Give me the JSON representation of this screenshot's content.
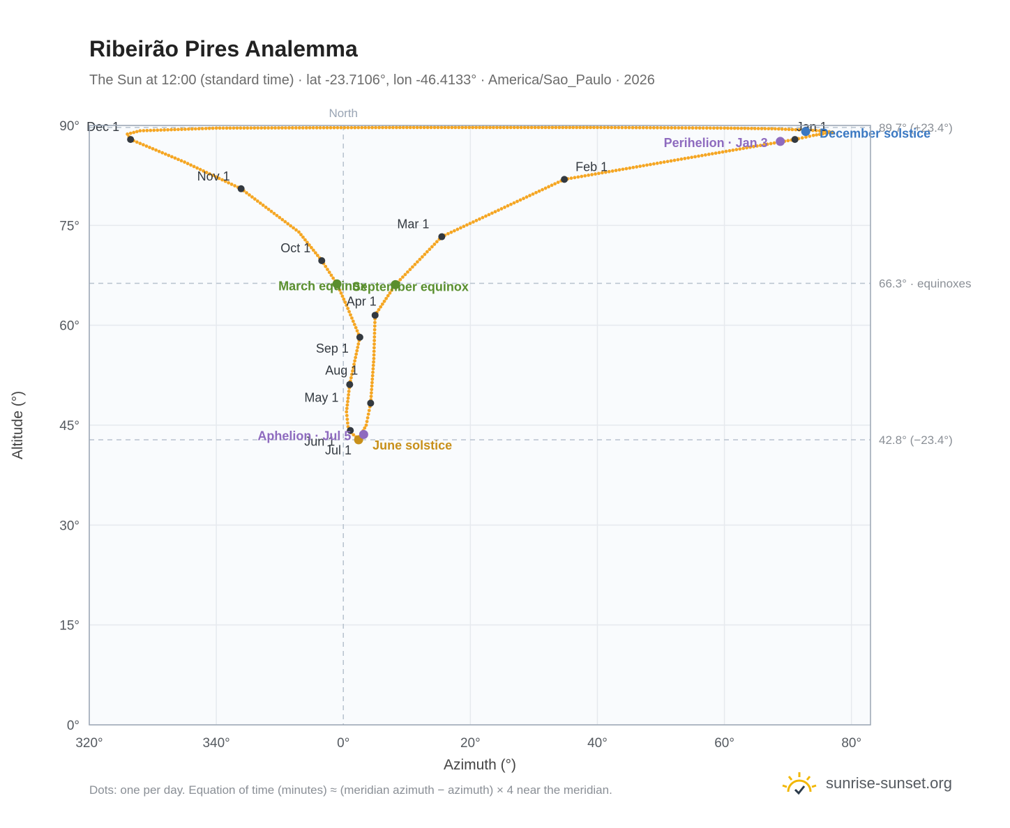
{
  "title": "Ribeirão Pires Analemma",
  "subtitle": "The Sun at 12:00 (standard time) · lat -23.7106°, lon -46.4133° · America/Sao_Paulo · 2026",
  "footnote": "Dots: one per day. Equation of time (minutes) ≈ (meridian azimuth − azimuth) × 4 near the meridian.",
  "brand": {
    "name": "sunrise-sunset.org",
    "icon": "sun-logo-icon"
  },
  "colors": {
    "curve": "#f5a623",
    "month_marker": "#333940",
    "equinox": "#5a8f2e",
    "june_solstice": "#c8901a",
    "december_solstice": "#3a78c2",
    "apsis": "#8e6bbf",
    "grid": "#e6e9ee",
    "plot_bg": "#f9fbfd",
    "axis": "#9aa5b4",
    "text": "#555a60"
  },
  "chart_data": {
    "type": "scatter",
    "xlabel": "Azimuth (°)",
    "ylabel": "Altitude (°)",
    "xlim": [
      320,
      83
    ],
    "ylim": [
      0,
      90
    ],
    "x_ticks": [
      {
        "value": 320,
        "label": "320°"
      },
      {
        "value": 340,
        "label": "340°"
      },
      {
        "value": 0,
        "label": "0°"
      },
      {
        "value": 20,
        "label": "20°"
      },
      {
        "value": 40,
        "label": "40°"
      },
      {
        "value": 60,
        "label": "60°"
      },
      {
        "value": 80,
        "label": "80°"
      }
    ],
    "y_ticks": [
      {
        "value": 0,
        "label": "0°"
      },
      {
        "value": 15,
        "label": "15°"
      },
      {
        "value": 30,
        "label": "30°"
      },
      {
        "value": 45,
        "label": "45°"
      },
      {
        "value": 60,
        "label": "60°"
      },
      {
        "value": 75,
        "label": "75°"
      },
      {
        "value": 90,
        "label": "90°"
      }
    ],
    "grid": true,
    "north_line": {
      "azimuth": 0,
      "label": "North"
    },
    "reference_lines": [
      {
        "altitude": 89.7,
        "label": "89.7° (+23.4°)"
      },
      {
        "altitude": 66.3,
        "label": "66.3° · equinoxes"
      },
      {
        "altitude": 42.8,
        "label": "42.8° (−23.4°)"
      }
    ],
    "month_markers": [
      {
        "label": "Jan 1",
        "azimuth": 71.1,
        "altitude": 87.9
      },
      {
        "label": "Feb 1",
        "azimuth": 34.8,
        "altitude": 81.9
      },
      {
        "label": "Mar 1",
        "azimuth": 15.5,
        "altitude": 73.3
      },
      {
        "label": "Apr 1",
        "azimuth": 5.0,
        "altitude": 61.5
      },
      {
        "label": "May 1",
        "azimuth": 4.3,
        "altitude": 48.3
      },
      {
        "label": "Jun 1",
        "azimuth": 1.1,
        "altitude": 44.2
      },
      {
        "label": "Jul 1",
        "azimuth": 2.4,
        "altitude": 42.9
      },
      {
        "label": "Aug 1",
        "azimuth": 1.0,
        "altitude": 51.1
      },
      {
        "label": "Sep 1",
        "azimuth": 2.6,
        "altitude": 58.2
      },
      {
        "label": "Oct 1",
        "azimuth": -3.4,
        "altitude": 69.7
      },
      {
        "label": "Nov 1",
        "azimuth": -16.1,
        "altitude": 80.5
      },
      {
        "label": "Dec 1",
        "azimuth": -33.5,
        "altitude": 87.9
      }
    ],
    "events": [
      {
        "label": "March equinox",
        "azimuth": -1.0,
        "altitude": 66.2,
        "kind": "equinox"
      },
      {
        "label": "September equinox",
        "azimuth": 8.2,
        "altitude": 66.1,
        "kind": "equinox"
      },
      {
        "label": "June solstice",
        "azimuth": 2.4,
        "altitude": 42.8,
        "kind": "june_solstice"
      },
      {
        "label": "December solstice",
        "azimuth": 72.8,
        "altitude": 89.1,
        "kind": "december_solstice"
      },
      {
        "label": "Aphelion · Jul 5",
        "azimuth": 3.2,
        "altitude": 43.6,
        "kind": "apsis"
      },
      {
        "label": "Perihelion · Jan 3",
        "azimuth": 68.8,
        "altitude": 87.6,
        "kind": "apsis"
      }
    ],
    "daily_path": [
      {
        "azimuth": 71.1,
        "altitude": 87.9
      },
      {
        "azimuth": 34.8,
        "altitude": 81.9
      },
      {
        "azimuth": 15.5,
        "altitude": 73.3
      },
      {
        "azimuth": 8.2,
        "altitude": 66.1
      },
      {
        "azimuth": 5.0,
        "altitude": 61.5
      },
      {
        "azimuth": 4.8,
        "altitude": 55.0
      },
      {
        "azimuth": 4.3,
        "altitude": 48.3
      },
      {
        "azimuth": 3.6,
        "altitude": 45.0
      },
      {
        "azimuth": 2.4,
        "altitude": 42.9
      },
      {
        "azimuth": 0.8,
        "altitude": 44.2
      },
      {
        "azimuth": 0.5,
        "altitude": 47.0
      },
      {
        "azimuth": 1.0,
        "altitude": 51.1
      },
      {
        "azimuth": 2.6,
        "altitude": 58.2
      },
      {
        "azimuth": 0.5,
        "altitude": 63.0
      },
      {
        "azimuth": -1.0,
        "altitude": 66.2
      },
      {
        "azimuth": -3.4,
        "altitude": 69.7
      },
      {
        "azimuth": -7.0,
        "altitude": 74.0
      },
      {
        "azimuth": -16.1,
        "altitude": 80.5
      },
      {
        "azimuth": -25.0,
        "altitude": 84.5
      },
      {
        "azimuth": -33.5,
        "altitude": 87.9
      },
      {
        "azimuth": -34.0,
        "altitude": 88.7
      },
      {
        "azimuth": -32.0,
        "altitude": 89.2
      },
      {
        "azimuth": -20.0,
        "altitude": 89.6
      },
      {
        "azimuth": 10.0,
        "altitude": 89.7
      },
      {
        "azimuth": 40.0,
        "altitude": 89.7
      },
      {
        "azimuth": 60.0,
        "altitude": 89.6
      },
      {
        "azimuth": 68.0,
        "altitude": 89.5
      },
      {
        "azimuth": 75.0,
        "altitude": 89.2
      },
      {
        "azimuth": 77.0,
        "altitude": 89.0
      },
      {
        "azimuth": 74.0,
        "altitude": 88.5
      },
      {
        "azimuth": 71.1,
        "altitude": 87.9
      }
    ]
  }
}
